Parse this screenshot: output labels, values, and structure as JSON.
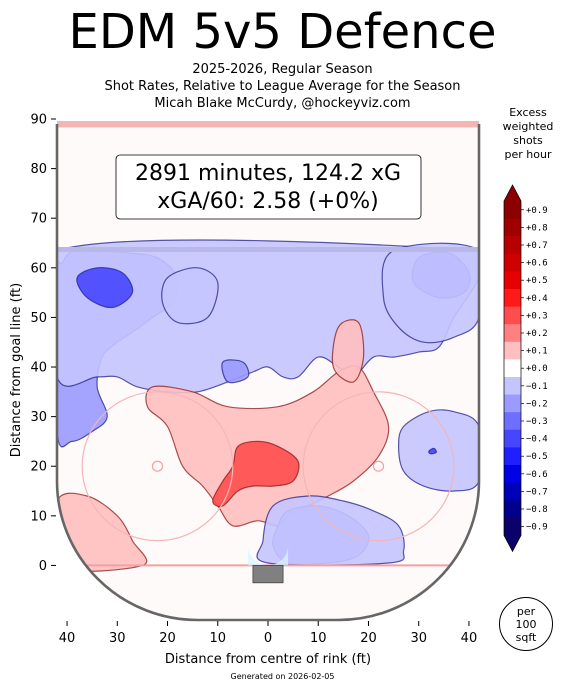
{
  "chart_data": {
    "type": "heatmap",
    "title": "EDM 5v5 Defence",
    "subtitle_lines": [
      "2025-2026, Regular Season",
      "Shot Rates, Relative to League Average for the Season",
      "Micah Blake McCurdy, @hockeyviz.com"
    ],
    "annotation_lines": [
      "2891 minutes, 124.2 xG",
      "xGA/60: 2.58 (+0%)"
    ],
    "xlabel": "Distance from centre of rink (ft)",
    "ylabel": "Distance from goal line (ft)",
    "xlim": [
      -42,
      42
    ],
    "ylim": [
      -11,
      90
    ],
    "x_ticks": [
      {
        "v": -40,
        "label": "40"
      },
      {
        "v": -30,
        "label": "30"
      },
      {
        "v": -20,
        "label": "20"
      },
      {
        "v": -10,
        "label": "10"
      },
      {
        "v": 0,
        "label": "0"
      },
      {
        "v": 10,
        "label": "10"
      },
      {
        "v": 20,
        "label": "20"
      },
      {
        "v": 30,
        "label": "30"
      },
      {
        "v": 40,
        "label": "40"
      }
    ],
    "y_ticks": [
      {
        "v": 0,
        "label": "0"
      },
      {
        "v": 10,
        "label": "10"
      },
      {
        "v": 20,
        "label": "20"
      },
      {
        "v": 30,
        "label": "30"
      },
      {
        "v": 40,
        "label": "40"
      },
      {
        "v": 50,
        "label": "50"
      },
      {
        "v": 60,
        "label": "60"
      },
      {
        "v": 70,
        "label": "70"
      },
      {
        "v": 80,
        "label": "80"
      },
      {
        "v": 90,
        "label": "90"
      }
    ],
    "colorbar_title_lines": [
      "Excess",
      "weighted",
      "shots",
      "per hour"
    ],
    "colorbar_labels": [
      "+0.9",
      "+0.8",
      "+0.7",
      "+0.6",
      "+0.5",
      "+0.4",
      "+0.3",
      "+0.2",
      "+0.1",
      "+0.0",
      "−0.1",
      "−0.2",
      "−0.3",
      "−0.4",
      "−0.5",
      "−0.6",
      "−0.7",
      "−0.8",
      "−0.9"
    ],
    "colorbar_colors": [
      "#8b0000",
      "#a00000",
      "#b80000",
      "#cf0000",
      "#e60000",
      "#ff1a1a",
      "#ff4d4d",
      "#ff8080",
      "#ffbfbf",
      "#ffffff",
      "#c4c4ff",
      "#9a9aff",
      "#6f6fff",
      "#4646ff",
      "#1f1fff",
      "#0000e6",
      "#0000b8",
      "#00008c",
      "#0c006a"
    ],
    "unit_badge_lines": [
      "per",
      "100",
      "sqft"
    ],
    "footer": "Generated on 2026-02-05",
    "regions": [
      {
        "level": -0.2,
        "points": [
          [
            -41,
            61
          ],
          [
            -38,
            63.5
          ],
          [
            -28,
            63
          ],
          [
            -22,
            62
          ],
          [
            -18,
            58
          ],
          [
            -19,
            53
          ],
          [
            -23,
            50
          ],
          [
            -27,
            47
          ],
          [
            -30,
            45
          ],
          [
            -33,
            42
          ],
          [
            -34,
            36
          ],
          [
            -32,
            30
          ],
          [
            -35,
            27
          ],
          [
            -39,
            25
          ],
          [
            -42,
            27
          ],
          [
            -42,
            58
          ]
        ]
      },
      {
        "level": -0.1,
        "points": [
          [
            -42,
            63.5
          ],
          [
            42,
            63.5
          ],
          [
            42,
            58
          ],
          [
            37,
            50
          ],
          [
            34,
            44
          ],
          [
            30,
            43
          ],
          [
            25,
            42
          ],
          [
            21,
            42
          ],
          [
            17,
            38
          ],
          [
            14,
            40
          ],
          [
            10,
            42
          ],
          [
            6,
            38
          ],
          [
            3,
            38
          ],
          [
            0,
            40
          ],
          [
            -3,
            39
          ],
          [
            -8,
            37
          ],
          [
            -14,
            35
          ],
          [
            -20,
            35
          ],
          [
            -26,
            36
          ],
          [
            -30,
            38
          ],
          [
            -34,
            38
          ],
          [
            -42,
            38
          ]
        ]
      },
      {
        "level": -0.4,
        "points": [
          [
            -38,
            58
          ],
          [
            -34,
            60
          ],
          [
            -29,
            59
          ],
          [
            -27,
            55
          ],
          [
            -31,
            52
          ],
          [
            -36,
            54
          ]
        ]
      },
      {
        "level": -0.1,
        "points": [
          [
            -20,
            58
          ],
          [
            -14,
            60
          ],
          [
            -10,
            57
          ],
          [
            -12,
            50
          ],
          [
            -18,
            49
          ],
          [
            -21,
            53
          ]
        ]
      },
      {
        "level": -0.2,
        "points": [
          [
            -9,
            41
          ],
          [
            -5,
            41
          ],
          [
            -4,
            38
          ],
          [
            -8,
            37
          ]
        ]
      },
      {
        "level": -0.3,
        "points": [
          [
            30,
            62
          ],
          [
            36,
            63
          ],
          [
            40,
            59
          ],
          [
            39,
            55
          ],
          [
            34,
            54
          ],
          [
            29,
            57
          ]
        ]
      },
      {
        "level": -0.1,
        "points": [
          [
            25,
            63.5
          ],
          [
            42,
            63.5
          ],
          [
            42,
            50
          ],
          [
            37,
            46
          ],
          [
            31,
            45
          ],
          [
            26,
            48
          ],
          [
            23,
            54
          ]
        ]
      },
      {
        "level": 0.1,
        "points": [
          [
            -23,
            36
          ],
          [
            -15,
            35
          ],
          [
            -8,
            32
          ],
          [
            2,
            32
          ],
          [
            9,
            35
          ],
          [
            14,
            39
          ],
          [
            18,
            40
          ],
          [
            21,
            35
          ],
          [
            24,
            28
          ],
          [
            22,
            22
          ],
          [
            17,
            17
          ],
          [
            12,
            14
          ],
          [
            8,
            12
          ],
          [
            4,
            10
          ],
          [
            2,
            8
          ],
          [
            -2,
            9
          ],
          [
            -7,
            8
          ],
          [
            -10,
            12
          ],
          [
            -13,
            16
          ],
          [
            -17,
            20
          ],
          [
            -20,
            28
          ],
          [
            -24,
            32
          ]
        ]
      },
      {
        "level": 0.3,
        "points": [
          [
            -6,
            24
          ],
          [
            -2,
            25
          ],
          [
            2,
            24
          ],
          [
            6,
            21
          ],
          [
            5,
            17
          ],
          [
            1,
            16
          ],
          [
            -3,
            16
          ],
          [
            -6,
            15
          ],
          [
            -9,
            12
          ],
          [
            -11,
            13
          ],
          [
            -9,
            17
          ],
          [
            -7,
            20
          ]
        ]
      },
      {
        "level": 0.1,
        "points": [
          [
            14,
            48
          ],
          [
            18,
            49
          ],
          [
            19,
            42
          ],
          [
            17,
            37
          ],
          [
            13,
            40
          ]
        ]
      },
      {
        "level": 0.1,
        "points": [
          [
            -42,
            13
          ],
          [
            -36,
            14
          ],
          [
            -30,
            10
          ],
          [
            -27,
            5
          ],
          [
            -25,
            0
          ],
          [
            -42,
            0
          ]
        ]
      },
      {
        "level": -0.2,
        "points": [
          [
            4,
            11
          ],
          [
            10,
            12
          ],
          [
            16,
            10
          ],
          [
            20,
            6
          ],
          [
            18,
            2
          ],
          [
            12,
            0.5
          ],
          [
            4,
            0.5
          ],
          [
            1,
            4
          ],
          [
            2,
            8
          ]
        ]
      },
      {
        "level": -0.1,
        "points": [
          [
            1,
            12
          ],
          [
            8,
            14
          ],
          [
            15,
            13
          ],
          [
            21,
            11
          ],
          [
            26,
            8
          ],
          [
            27,
            3
          ],
          [
            24,
            0.5
          ],
          [
            0,
            0.5
          ],
          [
            -1,
            5
          ]
        ]
      },
      {
        "level": -0.1,
        "points": [
          [
            27,
            28
          ],
          [
            32,
            31
          ],
          [
            37,
            31
          ],
          [
            42,
            28
          ],
          [
            42,
            17
          ],
          [
            37,
            15
          ],
          [
            31,
            16
          ],
          [
            27,
            19
          ],
          [
            26,
            24
          ]
        ]
      },
      {
        "level": -0.4,
        "points": [
          [
            32,
            23
          ],
          [
            33,
            23.6
          ],
          [
            33.5,
            22.8
          ],
          [
            32.4,
            22.5
          ]
        ]
      }
    ]
  }
}
